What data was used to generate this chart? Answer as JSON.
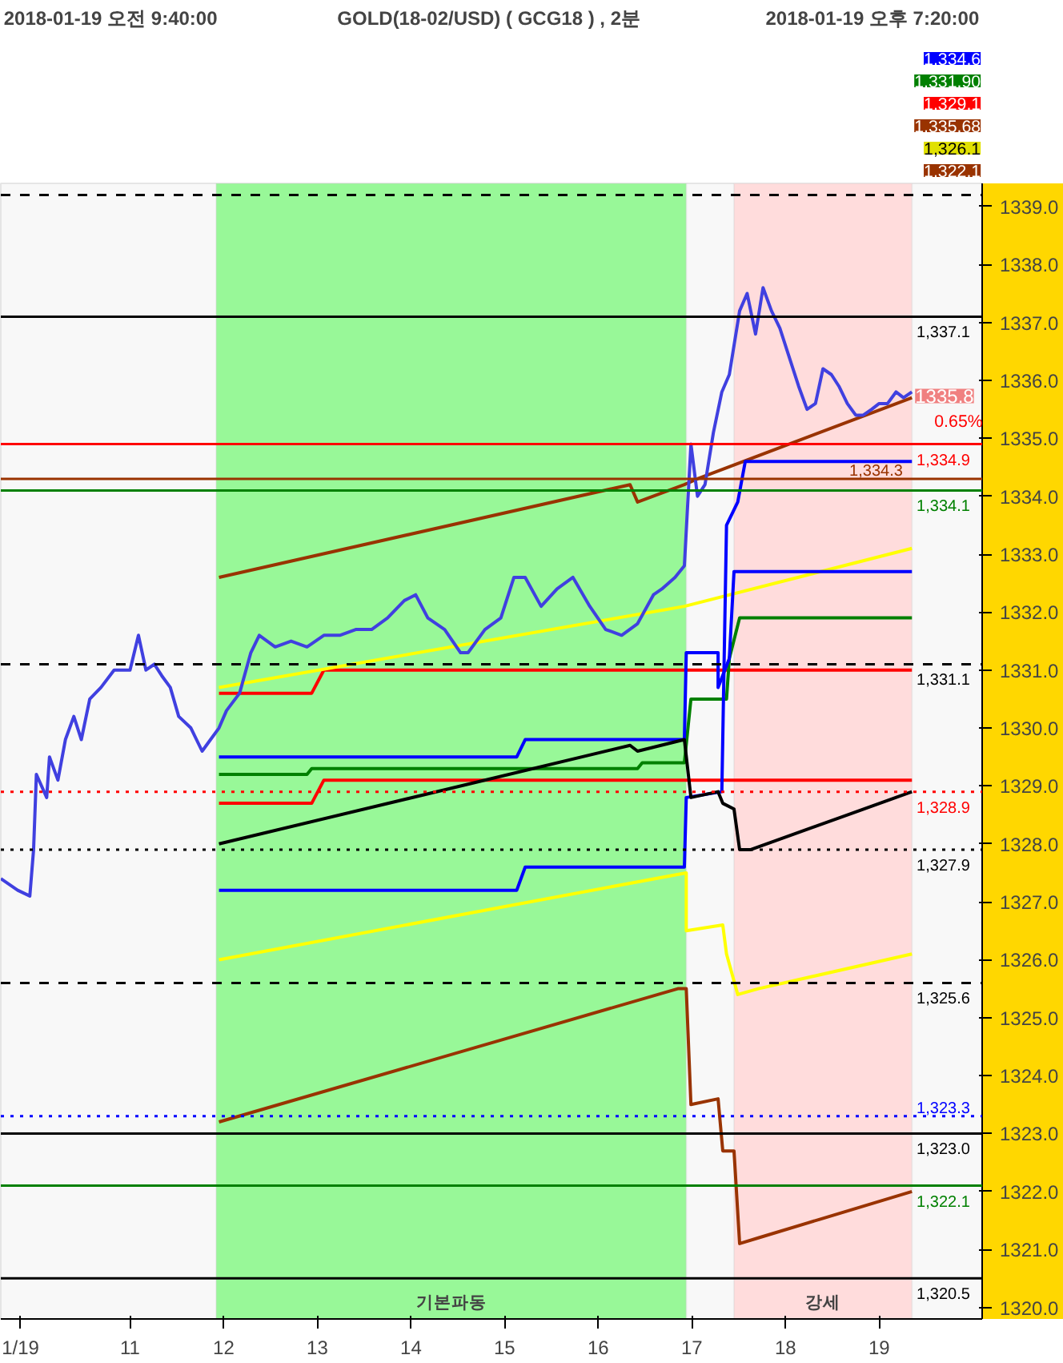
{
  "chart_data": {
    "type": "line",
    "title": "GOLD(18-02/USD)  ( GCG18 ) , 2분",
    "annotations": [
      "2018-01-19 오전 9:40:00",
      "2018-01-19 오후 7:20:00",
      "1,334.6",
      "1,331.90",
      "1,329.1",
      "1,335.68",
      "1,326.1",
      "1,322.1",
      "0.65%",
      {
        "text": "1335.8",
        "x": 19.35,
        "y": 1335.8
      }
    ],
    "xlim": [
      9.62,
      20.1
    ],
    "ylim": [
      1319.8,
      1339.4
    ],
    "xticks": [
      {
        "value": 9.83,
        "label": "1/19"
      },
      11,
      12,
      13,
      14,
      15,
      16,
      17,
      18,
      19
    ],
    "yticks": [
      {
        "value": 1320,
        "label": "1320.0"
      },
      {
        "value": 1321,
        "label": "1321.0"
      },
      {
        "value": 1322,
        "label": "1322.0"
      },
      {
        "value": 1323,
        "label": "1323.0"
      },
      {
        "value": 1324,
        "label": "1324.0"
      },
      {
        "value": 1325,
        "label": "1325.0"
      },
      {
        "value": 1326,
        "label": "1326.0"
      },
      {
        "value": 1327,
        "label": "1327.0"
      },
      {
        "value": 1328,
        "label": "1328.0"
      },
      {
        "value": 1329,
        "label": "1329.0"
      },
      {
        "value": 1330,
        "label": "1330.0"
      },
      {
        "value": 1331,
        "label": "1331.0"
      },
      {
        "value": 1332,
        "label": "1332.0"
      },
      {
        "value": 1333,
        "label": "1333.0"
      },
      {
        "value": 1334,
        "label": "1334.0"
      },
      {
        "value": 1335,
        "label": "1335.0"
      },
      {
        "value": 1336,
        "label": "1336.0"
      },
      {
        "value": 1337,
        "label": "1337.0"
      },
      {
        "value": 1338,
        "label": "1338.0"
      },
      {
        "value": 1339,
        "label": "1339.0"
      }
    ],
    "bands": [
      {
        "axis": "x",
        "from": 11.92,
        "to": 16.94,
        "label": "기본파동",
        "color": "#98f898"
      },
      {
        "axis": "x",
        "from": 17.45,
        "to": 19.35,
        "label": "강세",
        "color": "#ffdcdc"
      }
    ],
    "ref_lines": [
      {
        "axis": "y",
        "value": 1339.2,
        "label": null,
        "color": "#000000",
        "line_style": "dashed"
      },
      {
        "axis": "y",
        "value": 1337.1,
        "label": "1,337.1",
        "color": "#000000",
        "line_style": "solid"
      },
      {
        "axis": "y",
        "value": 1334.9,
        "label": "1,334.9",
        "color": "#ff0000",
        "line_style": "solid"
      },
      {
        "axis": "y",
        "value": 1334.3,
        "label": "1,334.3",
        "color": "#993300",
        "line_style": "solid"
      },
      {
        "axis": "y",
        "value": 1334.1,
        "label": "1,334.1",
        "color": "#008000",
        "line_style": "solid"
      },
      {
        "axis": "y",
        "value": 1331.1,
        "label": "1,331.1",
        "color": "#000000",
        "line_style": "dashed"
      },
      {
        "axis": "y",
        "value": 1328.9,
        "label": "1,328.9",
        "color": "#ff0000",
        "line_style": "dotted"
      },
      {
        "axis": "y",
        "value": 1327.9,
        "label": "1,327.9",
        "color": "#000000",
        "line_style": "dotted"
      },
      {
        "axis": "y",
        "value": 1325.6,
        "label": "1,325.6",
        "color": "#000000",
        "line_style": "dashed"
      },
      {
        "axis": "y",
        "value": 1323.3,
        "label": "1,323.3",
        "color": "#0000ff",
        "line_style": "dotted"
      },
      {
        "axis": "y",
        "value": 1323.0,
        "label": "1,323.0",
        "color": "#000000",
        "line_style": "solid"
      },
      {
        "axis": "y",
        "value": 1322.1,
        "label": "1,322.1",
        "color": "#008000",
        "line_style": "solid"
      },
      {
        "axis": "y",
        "value": 1320.5,
        "label": "1,320.5",
        "color": "#000000",
        "line_style": "solid"
      }
    ],
    "series": [
      {
        "color": "#993300",
        "x": [
          11.95,
          16.34,
          16.42,
          16.92,
          17.06,
          17.71,
          19.35
        ],
        "values": [
          1332.6,
          1334.2,
          1333.9,
          1334.2,
          1334.3,
          1334.7,
          1335.7
        ]
      },
      {
        "color": "#ff0000",
        "x": [
          11.95,
          12.94,
          13.07,
          19.35
        ],
        "values": [
          1330.6,
          1330.6,
          1331.0,
          1331.0
        ]
      },
      {
        "color": "#ff0000",
        "x": [
          11.95,
          12.94,
          13.07,
          19.35
        ],
        "values": [
          1328.7,
          1328.7,
          1329.1,
          1329.1
        ]
      },
      {
        "color": "#ffff00",
        "x": [
          11.95,
          16.92,
          19.35
        ],
        "values": [
          1330.7,
          1332.1,
          1333.1
        ]
      },
      {
        "color": "#ffff00",
        "x": [
          11.95,
          16.94,
          16.94,
          17.33,
          17.37,
          17.49,
          17.71,
          19.35
        ],
        "values": [
          1326.0,
          1327.5,
          1326.5,
          1326.6,
          1326.1,
          1325.4,
          1325.5,
          1326.1
        ]
      },
      {
        "color": "#008000",
        "x": [
          11.95,
          12.89,
          12.94,
          16.42,
          16.47,
          16.92,
          16.99,
          17.37,
          17.4,
          17.51,
          19.35
        ],
        "values": [
          1329.2,
          1329.2,
          1329.3,
          1329.3,
          1329.4,
          1329.4,
          1330.5,
          1330.5,
          1331.2,
          1331.9,
          1331.9
        ]
      },
      {
        "color": "#0000ff",
        "x": [
          11.95,
          15.13,
          15.22,
          16.92,
          16.94,
          17.28,
          17.28,
          17.4,
          17.45,
          19.35
        ],
        "values": [
          1329.5,
          1329.5,
          1329.8,
          1329.8,
          1331.3,
          1331.3,
          1330.7,
          1331.2,
          1332.7,
          1332.7
        ]
      },
      {
        "color": "#0000ff",
        "x": [
          11.95,
          15.13,
          15.22,
          16.92,
          16.94,
          17.32,
          17.37,
          17.49,
          17.57,
          19.35
        ],
        "values": [
          1327.2,
          1327.2,
          1327.6,
          1327.6,
          1328.8,
          1328.9,
          1333.5,
          1333.9,
          1334.6,
          1334.6
        ]
      },
      {
        "color": "#000000",
        "x": [
          11.95,
          16.34,
          16.42,
          16.92,
          16.99,
          17.28,
          17.33,
          17.45,
          17.51,
          17.63,
          19.35
        ],
        "values": [
          1328.0,
          1329.7,
          1329.6,
          1329.8,
          1328.8,
          1328.9,
          1328.7,
          1328.6,
          1327.9,
          1327.9,
          1328.9
        ]
      },
      {
        "color": "#993300",
        "x": [
          11.95,
          16.85,
          16.94,
          16.99,
          17.28,
          17.33,
          17.45,
          17.51,
          17.71,
          19.35
        ],
        "values": [
          1323.2,
          1325.5,
          1325.5,
          1323.5,
          1323.6,
          1322.7,
          1322.7,
          1321.1,
          1321.2,
          1322.0
        ]
      },
      {
        "color": "#4040e0",
        "x": [
          9.62,
          9.8,
          9.93,
          9.97,
          10.0,
          10.11,
          10.14,
          10.23,
          10.31,
          10.4,
          10.48,
          10.57,
          10.69,
          10.83,
          11.0,
          11.09,
          11.17,
          11.26,
          11.34,
          11.43,
          11.52,
          11.65,
          11.77,
          11.86,
          11.95,
          12.03,
          12.17,
          12.29,
          12.38,
          12.55,
          12.72,
          12.89,
          13.07,
          13.24,
          13.41,
          13.58,
          13.75,
          13.93,
          14.05,
          14.18,
          14.36,
          14.53,
          14.61,
          14.79,
          14.96,
          15.1,
          15.22,
          15.39,
          15.56,
          15.73,
          15.91,
          16.08,
          16.25,
          16.42,
          16.59,
          16.68,
          16.82,
          16.92,
          16.99,
          17.06,
          17.14,
          17.23,
          17.32,
          17.4,
          17.51,
          17.59,
          17.68,
          17.76,
          17.85,
          17.94,
          18.02,
          18.14,
          18.23,
          18.32,
          18.4,
          18.49,
          18.57,
          18.66,
          18.75,
          18.83,
          18.92,
          19.0,
          19.09,
          19.18,
          19.26,
          19.35
        ],
        "values": [
          1327.4,
          1327.2,
          1327.1,
          1327.9,
          1329.2,
          1328.8,
          1329.5,
          1329.1,
          1329.8,
          1330.2,
          1329.8,
          1330.5,
          1330.7,
          1331.0,
          1331.0,
          1331.6,
          1331.0,
          1331.1,
          1330.9,
          1330.7,
          1330.2,
          1330.0,
          1329.6,
          1329.8,
          1330.0,
          1330.3,
          1330.6,
          1331.3,
          1331.6,
          1331.4,
          1331.5,
          1331.4,
          1331.6,
          1331.6,
          1331.7,
          1331.7,
          1331.9,
          1332.2,
          1332.3,
          1331.9,
          1331.7,
          1331.3,
          1331.3,
          1331.7,
          1331.9,
          1332.6,
          1332.6,
          1332.1,
          1332.4,
          1332.6,
          1332.1,
          1331.7,
          1331.6,
          1331.8,
          1332.3,
          1332.4,
          1332.6,
          1332.8,
          1334.9,
          1334.0,
          1334.2,
          1335.1,
          1335.8,
          1336.1,
          1337.2,
          1337.5,
          1336.8,
          1337.6,
          1337.2,
          1336.9,
          1336.5,
          1335.9,
          1335.5,
          1335.6,
          1336.2,
          1336.1,
          1335.9,
          1335.6,
          1335.4,
          1335.4,
          1335.5,
          1335.6,
          1335.6,
          1335.8,
          1335.7,
          1335.8
        ]
      }
    ]
  }
}
